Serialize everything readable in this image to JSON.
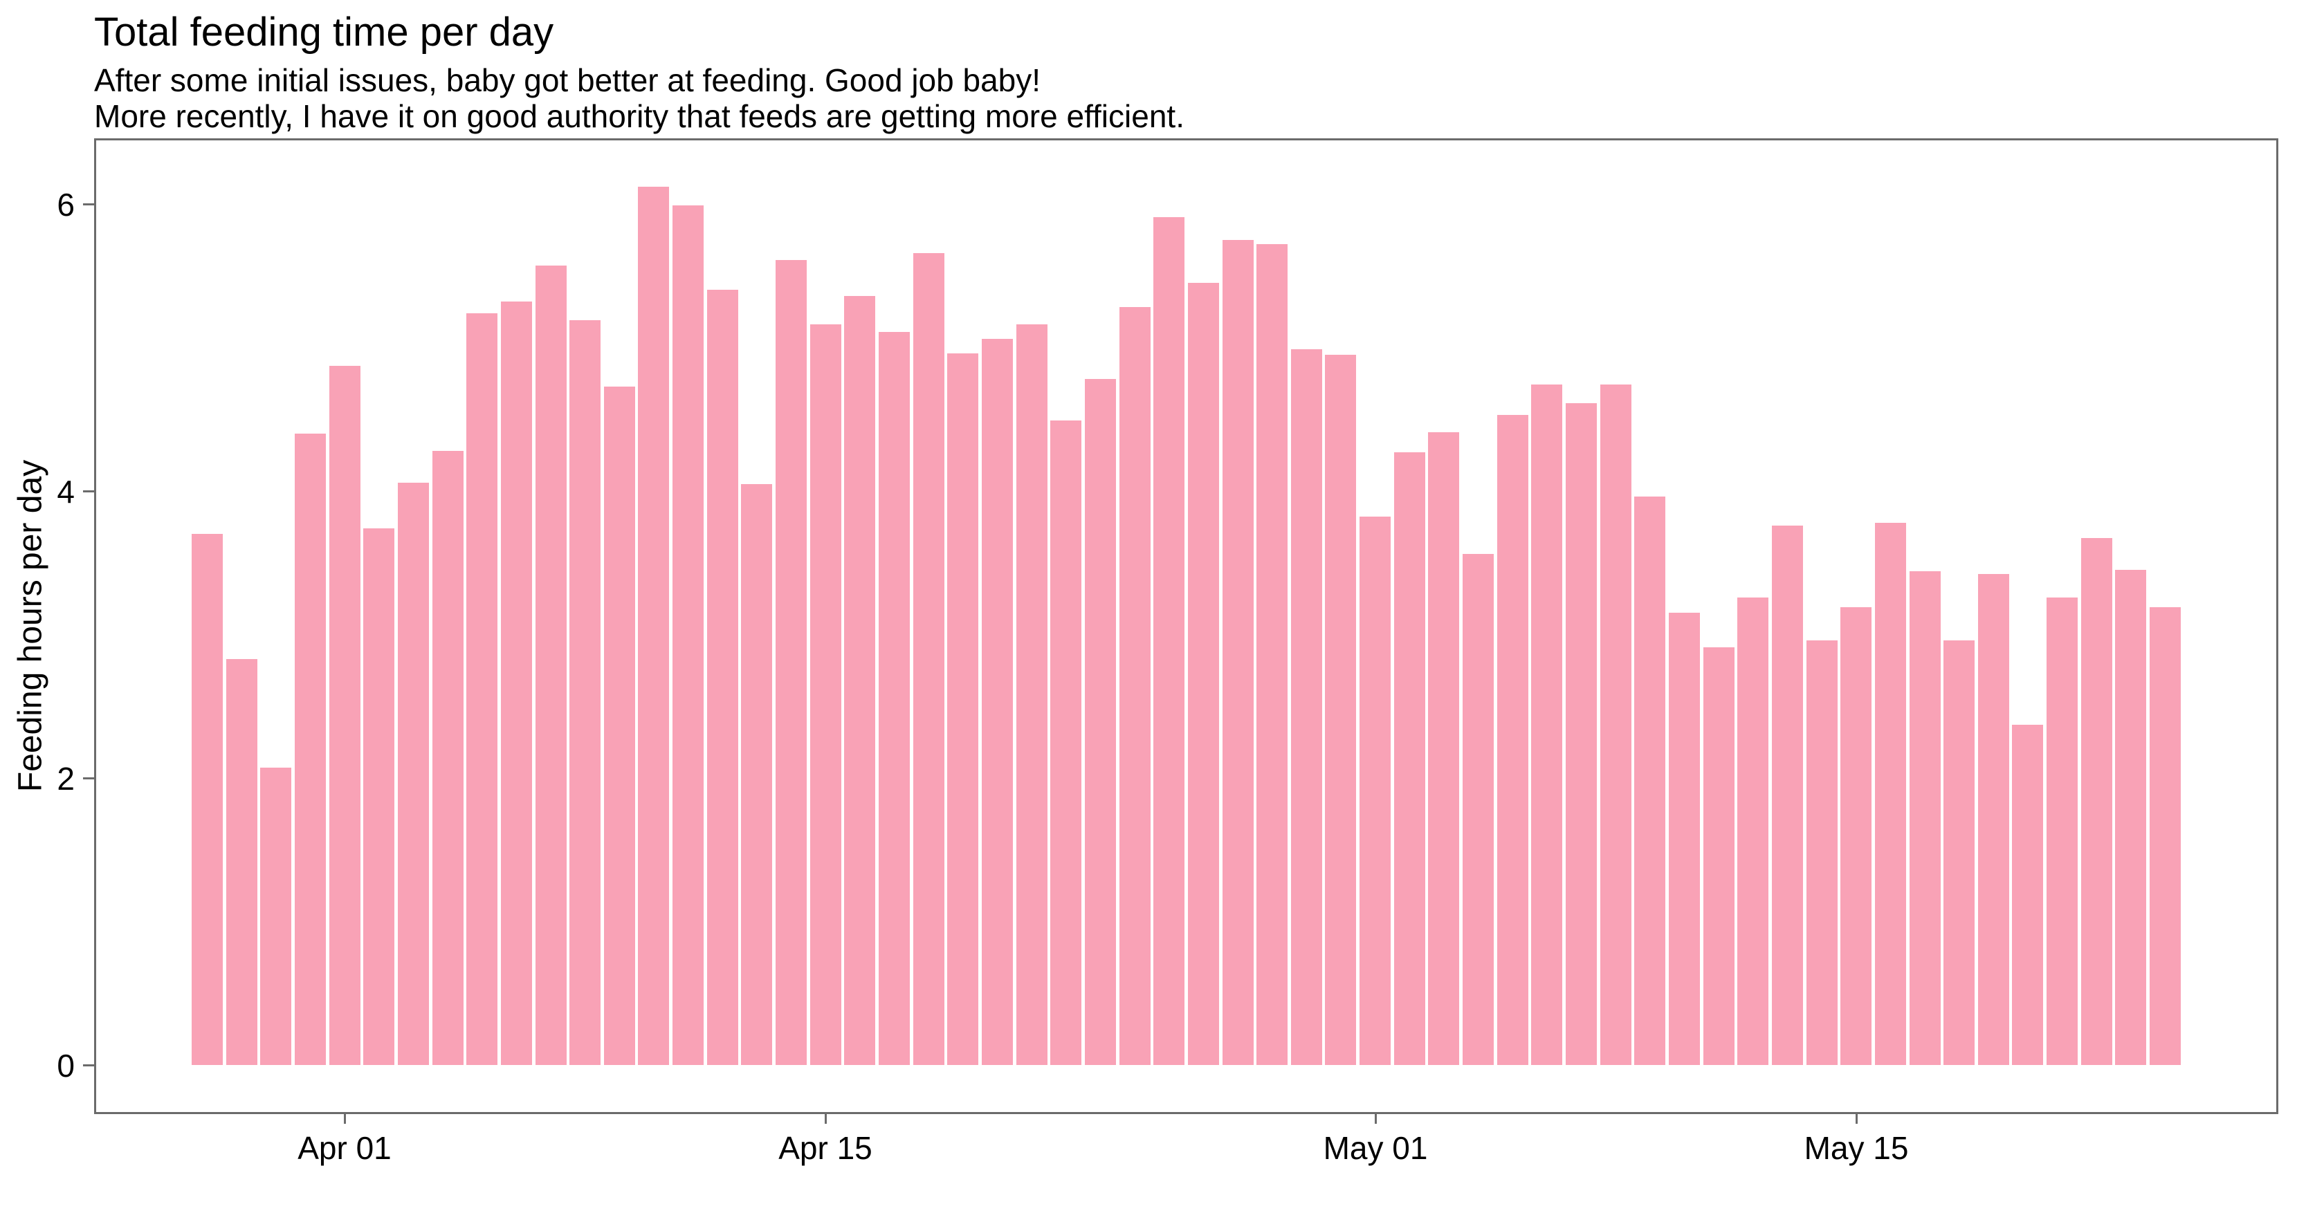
{
  "header": {
    "title": "Total feeding time per day",
    "subtitle_line1": "After some initial issues, baby got better at feeding. Good job baby!",
    "subtitle_line2": "More recently, I have it on good authority that feeds are getting more efficient."
  },
  "colors": {
    "bar_fill": "#F9A2B6",
    "axis_line": "#6b6b6b",
    "text": "#000000",
    "background": "#ffffff"
  },
  "chart_data": {
    "type": "bar",
    "title": "Total feeding time per day",
    "subtitle": [
      "After some initial issues, baby got better at feeding. Good job baby!",
      "More recently, I have it on good authority that feeds are getting more efficient."
    ],
    "xlabel": "",
    "ylabel": "Feeding hours per day",
    "ylim": [
      0,
      6.46
    ],
    "grid": false,
    "legend": false,
    "y_ticks": [
      0,
      2,
      4,
      6
    ],
    "x_ticks": [
      {
        "label": "Apr 01",
        "index": 4
      },
      {
        "label": "Apr 15",
        "index": 18
      },
      {
        "label": "May 01",
        "index": 34
      },
      {
        "label": "May 15",
        "index": 48
      }
    ],
    "categories": [
      "Mar 28",
      "Mar 29",
      "Mar 30",
      "Mar 31",
      "Apr 01",
      "Apr 02",
      "Apr 03",
      "Apr 04",
      "Apr 05",
      "Apr 06",
      "Apr 07",
      "Apr 08",
      "Apr 09",
      "Apr 10",
      "Apr 11",
      "Apr 12",
      "Apr 13",
      "Apr 14",
      "Apr 15",
      "Apr 16",
      "Apr 17",
      "Apr 18",
      "Apr 19",
      "Apr 20",
      "Apr 21",
      "Apr 22",
      "Apr 23",
      "Apr 24",
      "Apr 25",
      "Apr 26",
      "Apr 27",
      "Apr 28",
      "Apr 29",
      "Apr 30",
      "May 01",
      "May 02",
      "May 03",
      "May 04",
      "May 05",
      "May 06",
      "May 07",
      "May 08",
      "May 09",
      "May 10",
      "May 11",
      "May 12",
      "May 13",
      "May 14",
      "May 15",
      "May 16",
      "May 17",
      "May 18",
      "May 19",
      "May 20",
      "May 21",
      "May 22",
      "May 23",
      "May 24"
    ],
    "values": [
      3.7,
      2.83,
      2.07,
      4.4,
      4.87,
      3.74,
      4.06,
      4.28,
      5.24,
      5.32,
      5.57,
      5.19,
      4.73,
      6.12,
      5.99,
      5.4,
      4.05,
      5.61,
      5.16,
      5.36,
      5.11,
      5.66,
      4.96,
      5.06,
      5.16,
      4.49,
      4.78,
      5.28,
      5.91,
      5.45,
      5.75,
      5.72,
      4.99,
      4.95,
      3.82,
      4.27,
      4.41,
      3.56,
      4.53,
      4.74,
      4.61,
      4.74,
      3.96,
      3.15,
      2.91,
      3.26,
      3.76,
      2.96,
      3.19,
      3.78,
      3.44,
      2.96,
      3.42,
      2.37,
      3.26,
      3.67,
      3.45,
      3.19
    ]
  }
}
